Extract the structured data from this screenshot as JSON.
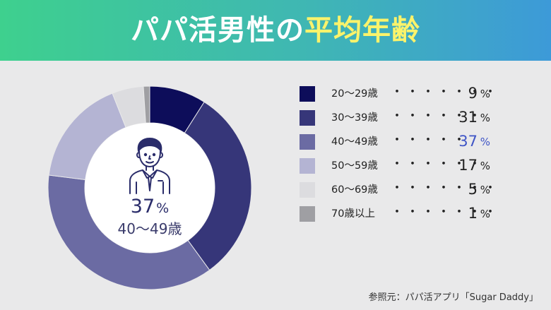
{
  "header": {
    "title_part1": "パパ活男性の",
    "title_part2": "平均年齢"
  },
  "center": {
    "percent": "37",
    "unit": "%",
    "range": "40～49歳"
  },
  "chart_data": {
    "type": "pie",
    "categories": [
      "20～29歳",
      "30～39歳",
      "40～49歳",
      "50～59歳",
      "60～69歳",
      "70歳以上"
    ],
    "values": [
      9,
      31,
      37,
      17,
      5,
      1
    ],
    "colors": [
      "#0d0d5a",
      "#363679",
      "#6b6ba3",
      "#b4b4d3",
      "#dcdcdf",
      "#9f9fa3"
    ],
    "value_unit": "%",
    "highlight_index": 2,
    "donut": true
  },
  "legend_dots": [
    "・・・・・・・",
    "・・・・・・",
    "・・・・・",
    "・・・・・・",
    "・・・・・・・",
    "・・・・・・・"
  ],
  "source": "参照元：パパ活アプリ「Sugar Daddy」"
}
